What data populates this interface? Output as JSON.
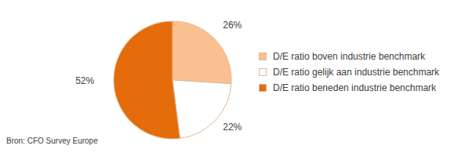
{
  "chart_data": {
    "type": "pie",
    "categories": [
      "D/E ratio boven industrie benchmark",
      "D/E ratio gelijk aan industrie benchmark",
      "D/E ratio beneden industrie benchmark"
    ],
    "values": [
      26,
      22,
      52
    ],
    "value_labels": [
      "26%",
      "22%",
      "52%"
    ],
    "colors": [
      "#fac08f",
      "#ffffff",
      "#e46c0a"
    ],
    "data_labels": true,
    "legend": "right",
    "source": "Bron: CFO Survey Europe"
  }
}
